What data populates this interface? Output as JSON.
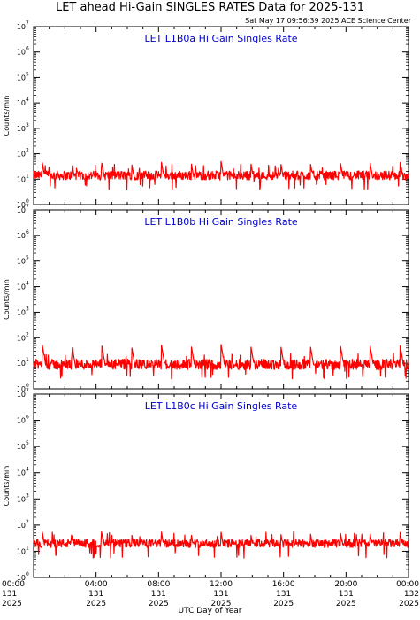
{
  "header": {
    "title": "LET ahead Hi-Gain SINGLES RATES Data for 2025-131",
    "timestamp": "Sat May 17 09:56:39 2025 ACE Science Center"
  },
  "x_axis_label": "UTC Day of Year",
  "colors": {
    "trace": "#ff0000",
    "panel_title": "#0000cc",
    "axis": "#000000"
  },
  "chart_data": [
    {
      "type": "line",
      "title": "LET L1B0a Hi Gain Singles Rate",
      "ylabel": "Counts/min",
      "ylim": [
        1,
        10000000
      ],
      "yscale": "log",
      "xlim": [
        0,
        24
      ],
      "x_unit": "hours UTC from 2025-131 00:00",
      "baseline": 14,
      "noise_factor": 1.5,
      "spike_peaks": [
        48,
        40,
        45,
        42,
        47,
        44,
        50,
        43,
        46,
        41,
        48,
        44,
        52
      ],
      "grid": false
    },
    {
      "type": "line",
      "title": "LET L1B0b Hi Gain Singles Rate",
      "ylabel": "Counts/min",
      "ylim": [
        1,
        10000000
      ],
      "yscale": "log",
      "xlim": [
        0,
        24
      ],
      "x_unit": "hours UTC from 2025-131 00:00",
      "baseline": 9,
      "noise_factor": 1.6,
      "spike_peaks": [
        55,
        48,
        50,
        46,
        52,
        49,
        54,
        47,
        51,
        45,
        53,
        48,
        56
      ],
      "grid": false
    },
    {
      "type": "line",
      "title": "LET L1B0c Hi Gain Singles Rate",
      "ylabel": "Counts/min",
      "ylim": [
        1,
        10000000
      ],
      "yscale": "log",
      "xlim": [
        0,
        24
      ],
      "x_unit": "hours UTC from 2025-131 00:00",
      "baseline": 20,
      "noise_factor": 1.45,
      "spike_peaks": [
        58,
        45,
        50,
        47,
        55,
        46,
        53,
        44,
        52,
        48,
        56,
        47,
        60
      ],
      "grid": false
    }
  ],
  "y_ticks": [
    {
      "base": "10",
      "exp": "0",
      "value": 1
    },
    {
      "base": "10",
      "exp": "1",
      "value": 10
    },
    {
      "base": "10",
      "exp": "2",
      "value": 100
    },
    {
      "base": "10",
      "exp": "3",
      "value": 1000
    },
    {
      "base": "10",
      "exp": "4",
      "value": 10000
    },
    {
      "base": "10",
      "exp": "5",
      "value": 100000
    },
    {
      "base": "10",
      "exp": "6",
      "value": 1000000
    },
    {
      "base": "10",
      "exp": "7",
      "value": 10000000
    }
  ],
  "x_ticks": [
    {
      "hour": 0,
      "time": "00:00",
      "doy": "131",
      "year": "2025"
    },
    {
      "hour": 4,
      "time": "04:00",
      "doy": "131",
      "year": "2025"
    },
    {
      "hour": 8,
      "time": "08:00",
      "doy": "131",
      "year": "2025"
    },
    {
      "hour": 12,
      "time": "12:00",
      "doy": "131",
      "year": "2025"
    },
    {
      "hour": 16,
      "time": "16:00",
      "doy": "131",
      "year": "2025"
    },
    {
      "hour": 20,
      "time": "20:00",
      "doy": "131",
      "year": "2025"
    },
    {
      "hour": 24,
      "time": "00:00",
      "doy": "132",
      "year": "2025"
    }
  ]
}
